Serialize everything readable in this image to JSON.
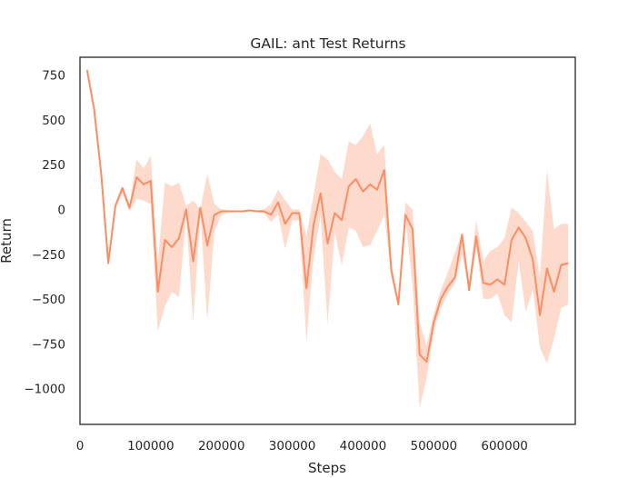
{
  "chart_data": {
    "type": "line",
    "title": "GAIL: ant Test Returns",
    "xlabel": "Steps",
    "ylabel": "Return",
    "xlim": [
      0,
      700000
    ],
    "ylim": [
      -1200,
      850
    ],
    "xticks": [
      0,
      100000,
      200000,
      300000,
      400000,
      500000,
      600000
    ],
    "xtick_labels": [
      "0",
      "100000",
      "200000",
      "300000",
      "400000",
      "500000",
      "600000"
    ],
    "yticks": [
      -1000,
      -750,
      -500,
      -250,
      0,
      250,
      500,
      750
    ],
    "ytick_labels": [
      "−1000",
      "−750",
      "−500",
      "−250",
      "0",
      "250",
      "500",
      "750"
    ],
    "grid": false,
    "legend": "none",
    "line_color": "#fc8d62",
    "band_color": "#fc8d62",
    "series": [
      {
        "x": [
          10000,
          20000,
          30000,
          40000,
          50000,
          60000,
          70000,
          80000,
          90000,
          100000,
          110000,
          120000,
          130000,
          140000,
          150000,
          160000,
          170000,
          180000,
          190000,
          200000,
          210000,
          220000,
          230000,
          240000,
          250000,
          260000,
          270000,
          280000,
          290000,
          300000,
          310000,
          320000,
          330000,
          340000,
          350000,
          360000,
          370000,
          380000,
          390000,
          400000,
          410000,
          420000,
          430000,
          440000,
          450000,
          460000,
          470000,
          480000,
          490000,
          500000,
          510000,
          520000,
          530000,
          540000,
          550000,
          560000,
          570000,
          580000,
          590000,
          600000,
          610000,
          620000,
          630000,
          640000,
          650000,
          660000,
          670000,
          680000,
          690000
        ],
        "y": [
          780,
          560,
          200,
          -300,
          20,
          120,
          10,
          180,
          140,
          160,
          -460,
          -170,
          -210,
          -160,
          0,
          -290,
          10,
          -200,
          -30,
          -10,
          -10,
          -10,
          -10,
          -5,
          -10,
          -10,
          -30,
          40,
          -80,
          -20,
          -20,
          -440,
          -90,
          90,
          -190,
          -20,
          -60,
          130,
          170,
          100,
          140,
          110,
          220,
          -340,
          -530,
          -30,
          -110,
          -810,
          -850,
          -630,
          -500,
          -430,
          -380,
          -140,
          -450,
          -150,
          -410,
          -420,
          -390,
          -420,
          -170,
          -100,
          -160,
          -280,
          -590,
          -330,
          -460,
          -310,
          -300
        ],
        "lower": [
          780,
          560,
          200,
          -300,
          0,
          90,
          -10,
          60,
          50,
          30,
          -680,
          -540,
          -460,
          -490,
          -40,
          -630,
          -30,
          -620,
          -120,
          -30,
          -15,
          -15,
          -15,
          -10,
          -15,
          -20,
          -70,
          -30,
          -220,
          -60,
          -60,
          -740,
          -270,
          -40,
          -640,
          -130,
          -310,
          -100,
          -120,
          -210,
          -200,
          -120,
          -30,
          -380,
          -540,
          -60,
          -420,
          -1110,
          -940,
          -680,
          -550,
          -470,
          -410,
          -250,
          -460,
          -210,
          -500,
          -500,
          -470,
          -590,
          -630,
          -290,
          -570,
          -450,
          -770,
          -860,
          -720,
          -550,
          -530
        ],
        "upper": [
          780,
          560,
          200,
          -300,
          30,
          130,
          30,
          280,
          230,
          300,
          -300,
          150,
          130,
          150,
          20,
          50,
          0,
          200,
          30,
          0,
          -5,
          -5,
          -5,
          0,
          -5,
          0,
          30,
          110,
          50,
          0,
          0,
          -150,
          80,
          310,
          280,
          210,
          170,
          380,
          360,
          410,
          480,
          310,
          360,
          -290,
          -520,
          40,
          0,
          -630,
          -760,
          -580,
          -450,
          -350,
          -240,
          -130,
          -400,
          -60,
          -290,
          -230,
          -210,
          -160,
          10,
          -20,
          -70,
          -120,
          -380,
          220,
          -110,
          -80,
          -80
        ]
      }
    ]
  }
}
